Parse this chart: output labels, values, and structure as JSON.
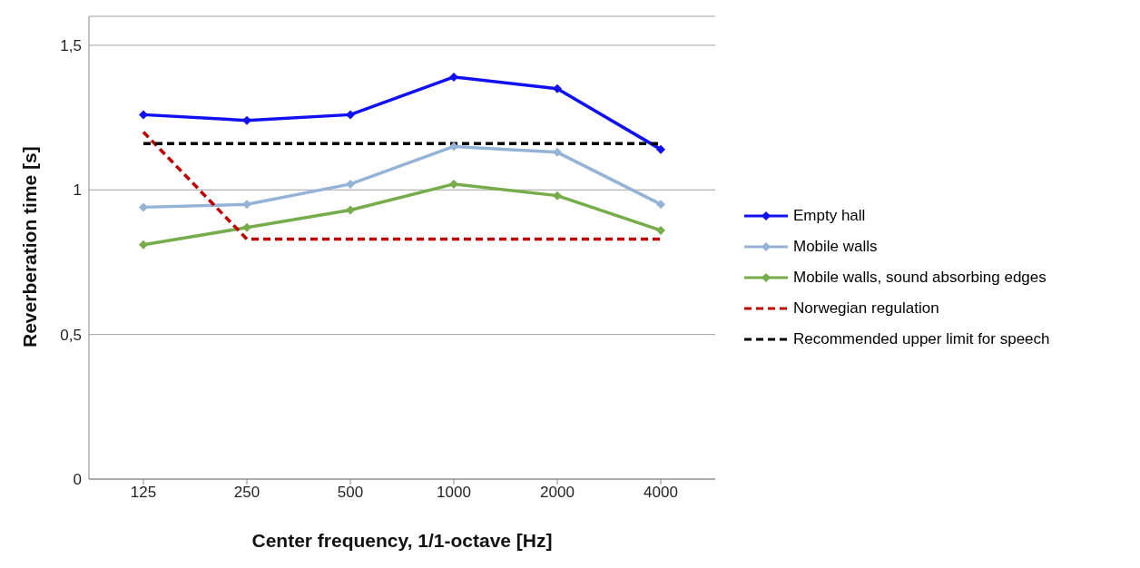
{
  "chart_data": {
    "type": "line",
    "xlabel": "Center frequency, 1/1-octave [Hz]",
    "ylabel": "Reverberation time [s]",
    "categories": [
      "125",
      "250",
      "500",
      "1000",
      "2000",
      "4000"
    ],
    "series": [
      {
        "name": "Empty hall",
        "color": "#1010f0",
        "values": [
          1.26,
          1.24,
          1.26,
          1.39,
          1.35,
          1.14
        ],
        "marker": "diamond",
        "line_style": "solid"
      },
      {
        "name": "Mobile walls",
        "color": "#95b3d7",
        "values": [
          0.94,
          0.95,
          1.02,
          1.15,
          1.13,
          0.95
        ],
        "marker": "diamond",
        "line_style": "solid"
      },
      {
        "name": "Mobile walls, sound absorbing edges",
        "color": "#77ac4a",
        "values": [
          0.81,
          0.87,
          0.93,
          1.02,
          0.98,
          0.86
        ],
        "marker": "diamond",
        "line_style": "solid"
      },
      {
        "name": "Norwegian regulation",
        "color": "#c00000",
        "values": [
          1.2,
          0.83,
          0.83,
          0.83,
          0.83,
          0.83
        ],
        "marker": "none",
        "line_style": "dashed"
      },
      {
        "name": "Recommended upper limit for speech",
        "color": "#000000",
        "values": [
          1.16,
          1.16,
          1.16,
          1.16,
          1.16,
          1.16
        ],
        "marker": "none",
        "line_style": "dashed"
      }
    ],
    "ylim": [
      0,
      1.6
    ],
    "yticks": [
      0,
      {
        "value": 0.5,
        "label": "0,5"
      },
      1,
      {
        "value": 1.5,
        "label": "1,5"
      }
    ],
    "grid": "y",
    "legend": "right"
  }
}
